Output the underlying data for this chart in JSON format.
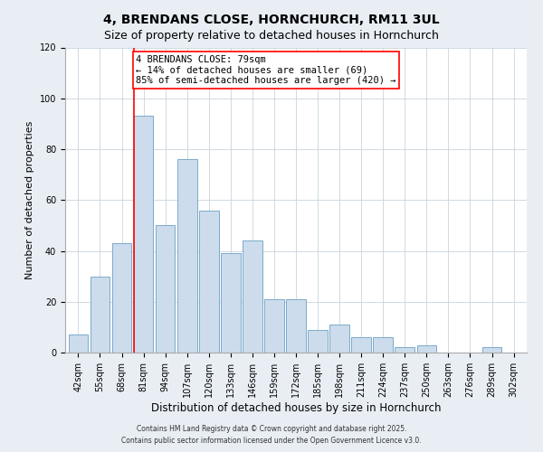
{
  "title": "4, BRENDANS CLOSE, HORNCHURCH, RM11 3UL",
  "subtitle": "Size of property relative to detached houses in Hornchurch",
  "xlabel": "Distribution of detached houses by size in Hornchurch",
  "ylabel": "Number of detached properties",
  "bin_labels": [
    "42sqm",
    "55sqm",
    "68sqm",
    "81sqm",
    "94sqm",
    "107sqm",
    "120sqm",
    "133sqm",
    "146sqm",
    "159sqm",
    "172sqm",
    "185sqm",
    "198sqm",
    "211sqm",
    "224sqm",
    "237sqm",
    "250sqm",
    "263sqm",
    "276sqm",
    "289sqm",
    "302sqm"
  ],
  "bar_heights": [
    7,
    30,
    43,
    93,
    50,
    76,
    56,
    39,
    44,
    21,
    21,
    9,
    11,
    6,
    6,
    2,
    3,
    0,
    0,
    2,
    0
  ],
  "bar_color": "#ccdcec",
  "bar_edge_color": "#7aaaca",
  "vline_x_index": 3,
  "vline_color": "red",
  "annotation_text": "4 BRENDANS CLOSE: 79sqm\n← 14% of detached houses are smaller (69)\n85% of semi-detached houses are larger (420) →",
  "annotation_box_color": "white",
  "annotation_box_edge_color": "red",
  "ylim": [
    0,
    120
  ],
  "yticks": [
    0,
    20,
    40,
    60,
    80,
    100,
    120
  ],
  "footer1": "Contains HM Land Registry data © Crown copyright and database right 2025.",
  "footer2": "Contains public sector information licensed under the Open Government Licence v3.0.",
  "bg_color": "#e8eef4",
  "plot_bg_color": "#ffffff",
  "title_fontsize": 10,
  "subtitle_fontsize": 9,
  "tick_fontsize": 7,
  "ylabel_fontsize": 8,
  "xlabel_fontsize": 8.5,
  "annotation_fontsize": 7.5,
  "footer_fontsize": 5.5
}
